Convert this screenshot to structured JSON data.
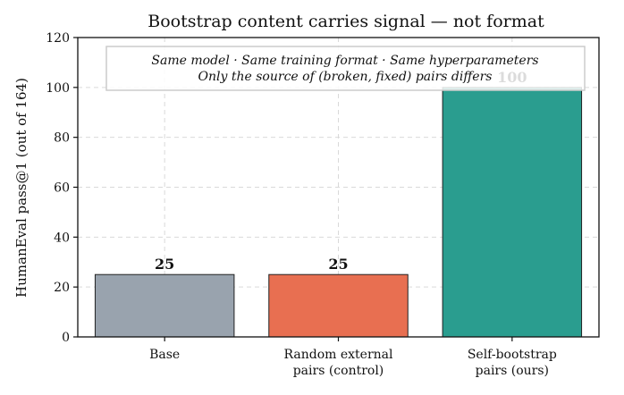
{
  "chart_data": {
    "type": "bar",
    "title": "Bootstrap content carries signal — not format",
    "xlabel": "",
    "ylabel": "HumanEval pass@1 (out of 164)",
    "ylim": [
      0,
      120
    ],
    "yticks": [
      0,
      20,
      40,
      60,
      80,
      100,
      120
    ],
    "grid": true,
    "categories": [
      [
        "Base"
      ],
      [
        "Random external",
        "pairs (control)"
      ],
      [
        "Self-bootstrap",
        "pairs (ours)"
      ]
    ],
    "values": [
      25,
      25,
      100
    ],
    "data_labels": [
      "25",
      "25",
      "100"
    ],
    "colors": [
      "#99a3ae",
      "#e86f51",
      "#2a9d8f"
    ],
    "annotation": {
      "lines": [
        "Same model · Same training format · Same hyperparameters",
        "Only the source of (broken, fixed) pairs differs"
      ],
      "placement": "top-center"
    }
  }
}
